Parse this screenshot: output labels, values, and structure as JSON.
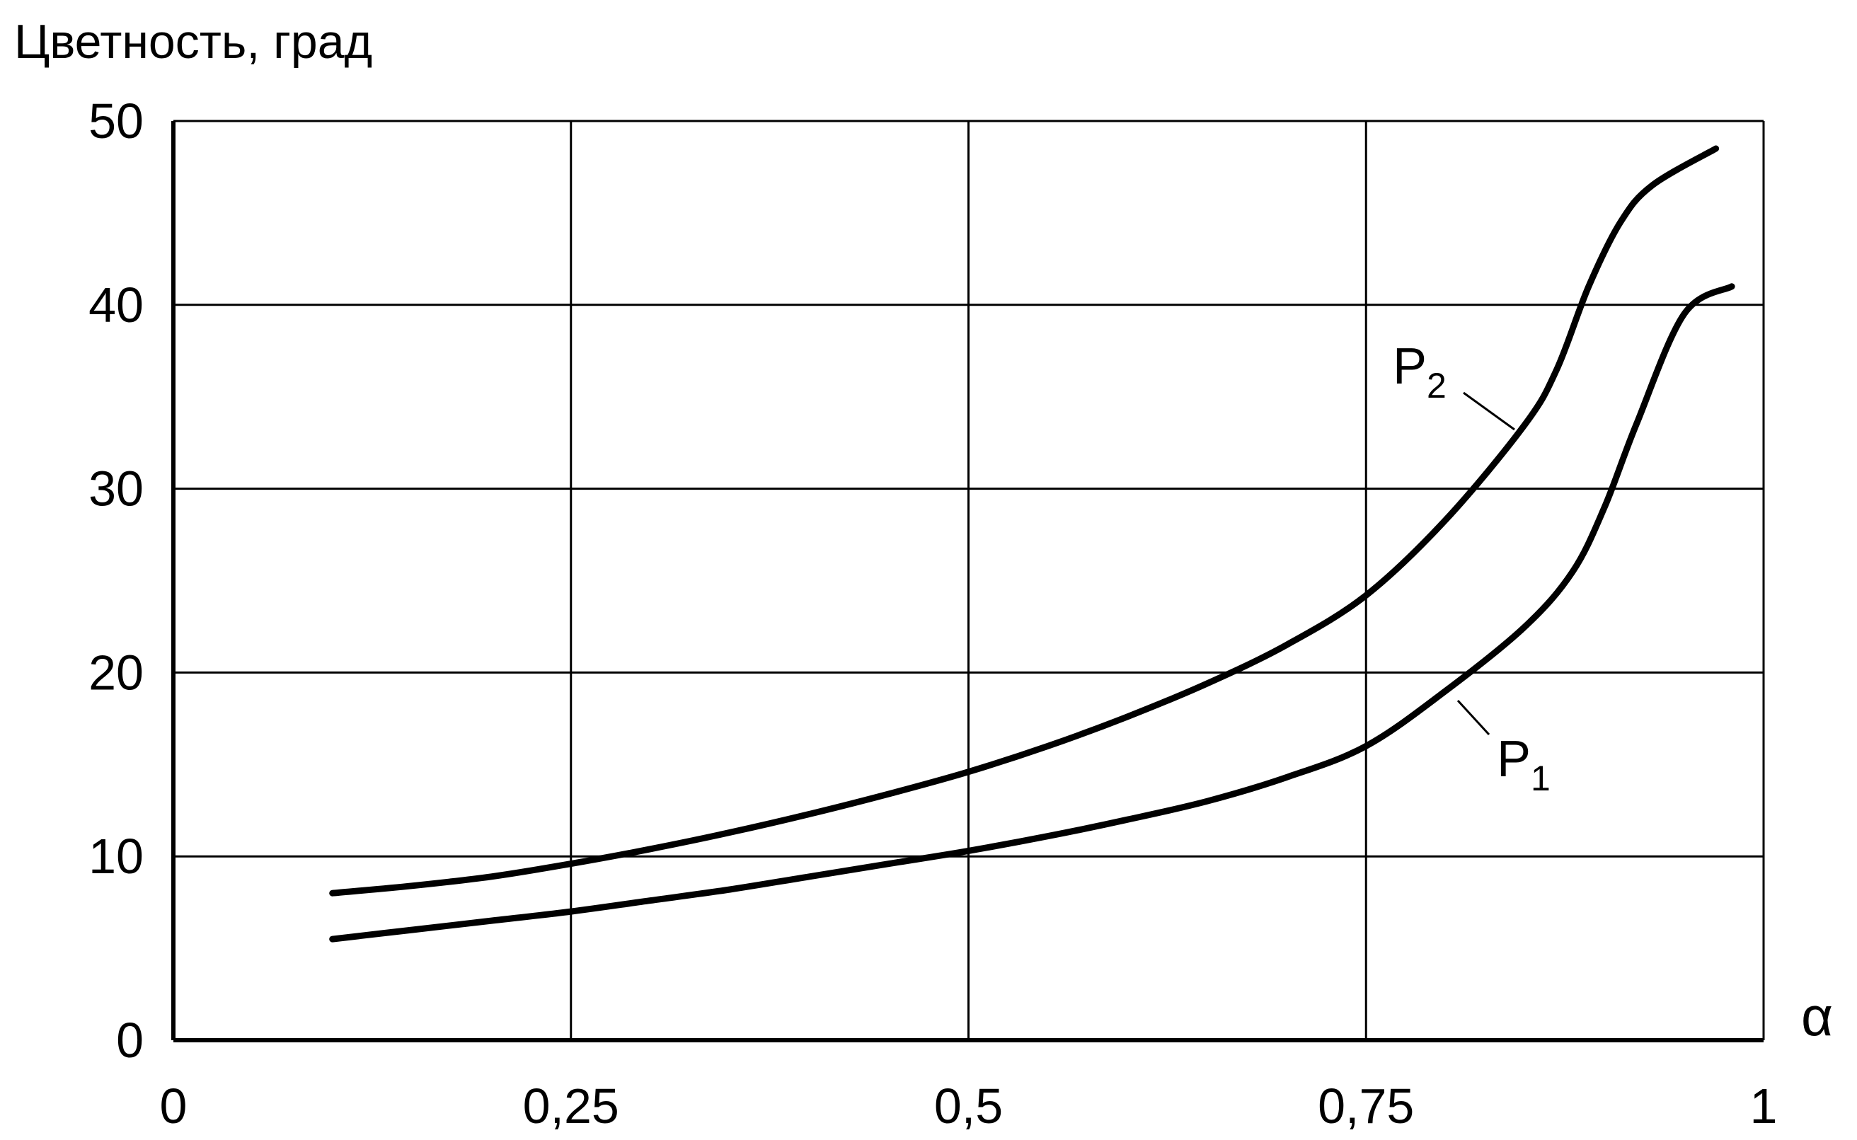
{
  "chart_data": {
    "type": "line",
    "title": "Цветность, град",
    "xlabel": "α",
    "ylabel": "Цветность, град",
    "xlim": [
      0,
      1
    ],
    "ylim": [
      0,
      50
    ],
    "grid": true,
    "x_ticks": [
      "0",
      "0,25",
      "0,5",
      "0,75",
      "1"
    ],
    "x_tick_values": [
      0,
      0.25,
      0.5,
      0.75,
      1
    ],
    "y_ticks": [
      "0",
      "10",
      "20",
      "30",
      "40",
      "50"
    ],
    "y_tick_values": [
      0,
      10,
      20,
      30,
      40,
      50
    ],
    "series": [
      {
        "name": "P1",
        "label_main": "P",
        "label_sub": "1",
        "x": [
          0.1,
          0.15,
          0.2,
          0.25,
          0.3,
          0.35,
          0.4,
          0.45,
          0.5,
          0.55,
          0.6,
          0.65,
          0.7,
          0.75,
          0.8,
          0.85,
          0.88,
          0.9,
          0.92,
          0.95,
          0.98
        ],
        "y": [
          5.5,
          6.0,
          6.5,
          7.0,
          7.6,
          8.2,
          8.9,
          9.6,
          10.3,
          11.1,
          12.0,
          13.0,
          14.3,
          16.0,
          19.0,
          22.5,
          25.5,
          29.0,
          33.5,
          39.5,
          41.0
        ]
      },
      {
        "name": "P2",
        "label_main": "P",
        "label_sub": "2",
        "x": [
          0.1,
          0.15,
          0.2,
          0.25,
          0.3,
          0.35,
          0.4,
          0.45,
          0.5,
          0.55,
          0.6,
          0.65,
          0.7,
          0.75,
          0.8,
          0.85,
          0.87,
          0.89,
          0.91,
          0.93,
          0.97
        ],
        "y": [
          8.0,
          8.4,
          8.9,
          9.6,
          10.4,
          11.3,
          12.3,
          13.4,
          14.6,
          16.0,
          17.6,
          19.4,
          21.5,
          24.2,
          28.3,
          33.5,
          36.5,
          41.0,
          44.5,
          46.5,
          48.5
        ]
      }
    ]
  }
}
